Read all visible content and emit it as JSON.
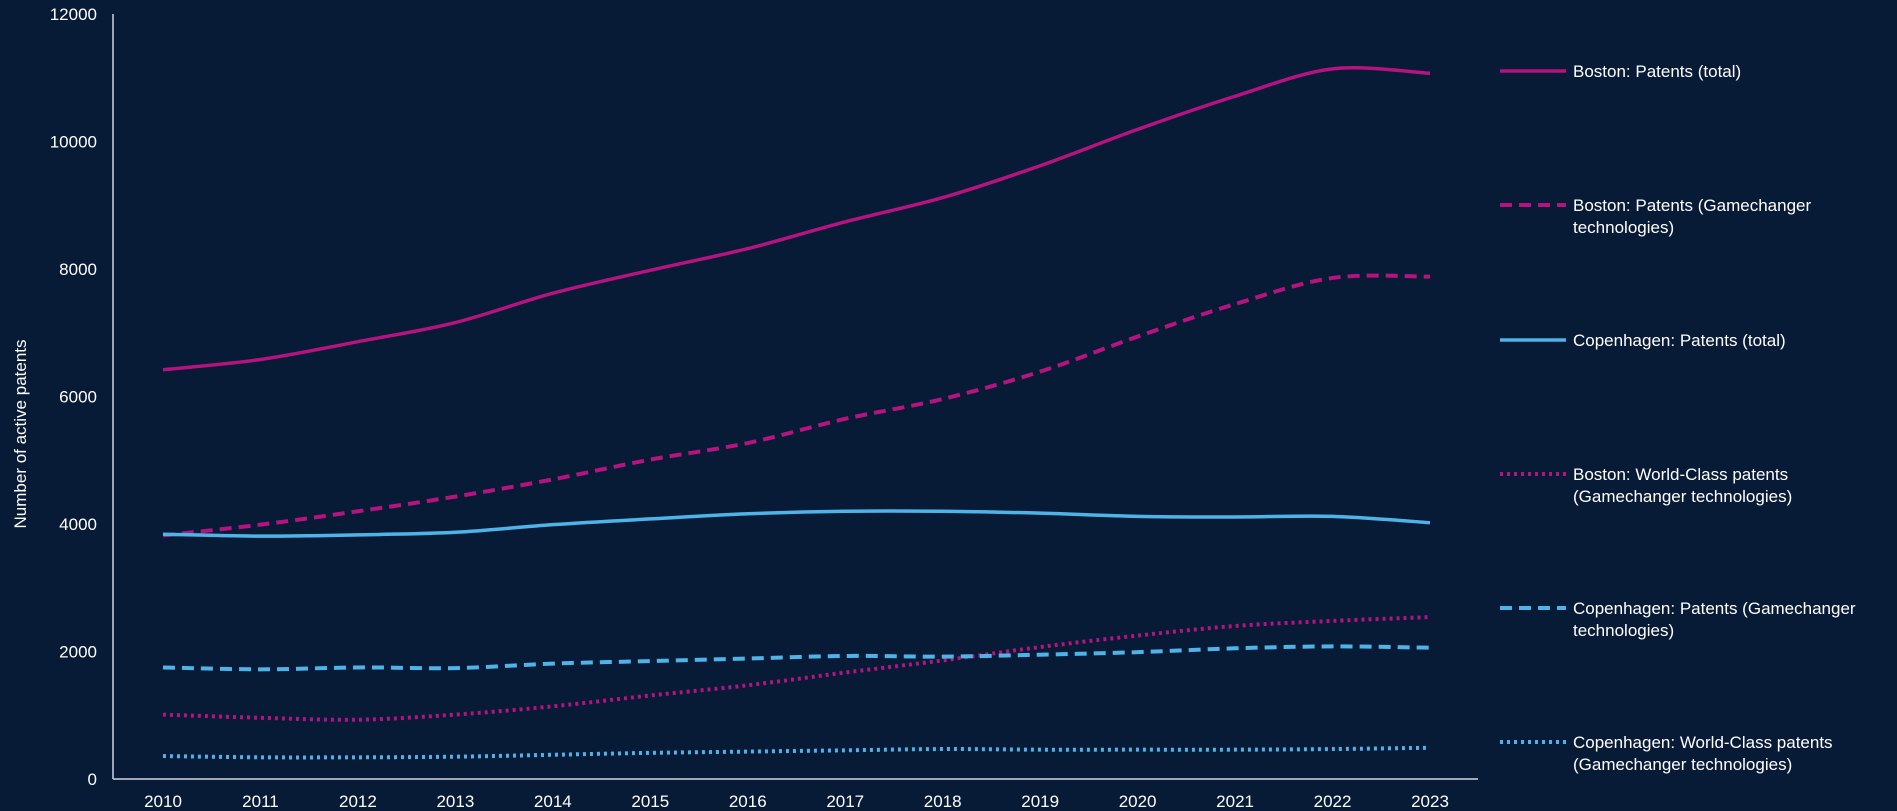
{
  "chart_data": {
    "type": "line",
    "ylabel": "Number of active patents",
    "xlabel": "",
    "ylim": [
      0,
      12000
    ],
    "yticks": [
      0,
      2000,
      4000,
      6000,
      8000,
      10000,
      12000
    ],
    "x": [
      "2010",
      "2011",
      "2012",
      "2013",
      "2014",
      "2015",
      "2016",
      "2017",
      "2018",
      "2019",
      "2020",
      "2021",
      "2022",
      "2023"
    ],
    "grid": false,
    "legend_position": "right",
    "series": [
      {
        "name": "Boston: Patents (total)",
        "legend_lines": [
          "Boston: Patents (total)"
        ],
        "color": "#b5137e",
        "style": "solid",
        "values": [
          6420,
          6580,
          6860,
          7160,
          7620,
          7980,
          8320,
          8740,
          9120,
          9620,
          10190,
          10710,
          11140,
          11070
        ]
      },
      {
        "name": "Boston: Patents (Gamechanger technologies)",
        "legend_lines": [
          "Boston: Patents (Gamechanger",
          "technologies)"
        ],
        "color": "#b5137e",
        "style": "dashed",
        "values": [
          3820,
          3990,
          4200,
          4430,
          4700,
          5010,
          5270,
          5650,
          5960,
          6390,
          6940,
          7450,
          7860,
          7880
        ]
      },
      {
        "name": "Copenhagen: Patents (total)",
        "legend_lines": [
          "Copenhagen: Patents (total)"
        ],
        "color": "#4fb3e8",
        "style": "solid",
        "values": [
          3840,
          3810,
          3830,
          3870,
          3990,
          4080,
          4160,
          4200,
          4200,
          4170,
          4120,
          4110,
          4120,
          4020
        ]
      },
      {
        "name": "Boston: World-Class patents (Gamechanger technologies)",
        "legend_lines": [
          "Boston: World-Class patents",
          "(Gamechanger technologies)"
        ],
        "color": "#b5137e",
        "style": "dotted",
        "values": [
          1010,
          960,
          930,
          1010,
          1140,
          1310,
          1470,
          1670,
          1860,
          2070,
          2250,
          2400,
          2480,
          2540
        ]
      },
      {
        "name": "Copenhagen: Patents (Gamechanger technologies)",
        "legend_lines": [
          "Copenhagen: Patents (Gamechanger",
          "technologies)"
        ],
        "color": "#4fb3e8",
        "style": "dashed",
        "values": [
          1750,
          1720,
          1750,
          1740,
          1810,
          1850,
          1890,
          1930,
          1920,
          1950,
          1990,
          2050,
          2080,
          2060
        ]
      },
      {
        "name": "Copenhagen: World-Class patents (Gamechanger technologies)",
        "legend_lines": [
          "Copenhagen: World-Class patents",
          "(Gamechanger technologies)"
        ],
        "color": "#4fb3e8",
        "style": "dotted",
        "values": [
          360,
          340,
          340,
          350,
          380,
          410,
          430,
          450,
          470,
          460,
          460,
          460,
          470,
          490
        ]
      }
    ]
  }
}
